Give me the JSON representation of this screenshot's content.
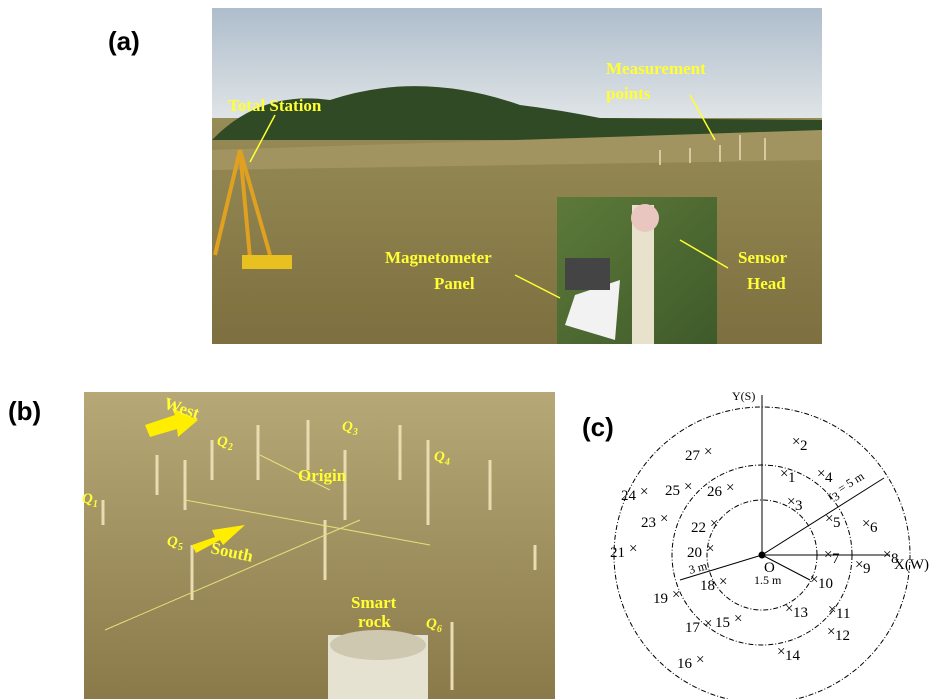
{
  "panel_a": {
    "label": "(a)",
    "annotations": [
      "Total Station",
      "Measurement",
      "points",
      "Magnetometer",
      "Panel",
      "Sensor",
      "Head"
    ]
  },
  "panel_b": {
    "label": "(b)",
    "annotations": [
      "West",
      "South",
      "Origin",
      "Smart",
      "rock"
    ],
    "q_labels": [
      {
        "letter": "Q",
        "sub": "1"
      },
      {
        "letter": "Q",
        "sub": "2"
      },
      {
        "letter": "Q",
        "sub": "3"
      },
      {
        "letter": "Q",
        "sub": "4"
      },
      {
        "letter": "Q",
        "sub": "5"
      },
      {
        "letter": "Q",
        "sub": "6"
      }
    ]
  },
  "panel_c": {
    "label": "(c)",
    "y_axis": "Y(S)",
    "x_axis": "X(W)",
    "origin": "O",
    "radius_inner": "1.5 m",
    "radius_middle": "3 m",
    "radius_outer": {
      "symbol": "r",
      "sub": "3",
      "rest": " = 5 m"
    },
    "points": [
      "1",
      "2",
      "3",
      "4",
      "5",
      "6",
      "7",
      "8",
      "9",
      "10",
      "11",
      "12",
      "13",
      "14",
      "15",
      "16",
      "17",
      "18",
      "19",
      "20",
      "21",
      "22",
      "23",
      "24",
      "25",
      "26",
      "27"
    ]
  }
}
